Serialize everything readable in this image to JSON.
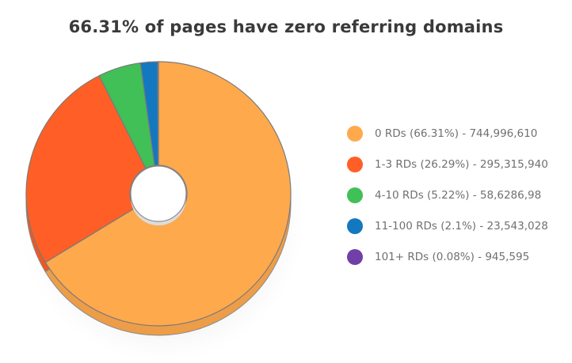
{
  "chart_data": {
    "type": "pie",
    "title": "66.31% of pages have zero referring domains",
    "legend_position": "right",
    "slices": [
      {
        "label": "0 RDs (66.31%) - 744,996,610",
        "value": 66.31,
        "color": "#FFA94D"
      },
      {
        "label": "1-3 RDs (26.29%) - 295,315,940",
        "value": 26.29,
        "color": "#FF5F26"
      },
      {
        "label": "4-10 RDs (5.22%) - 58,6286,98",
        "value": 5.22,
        "color": "#40C056"
      },
      {
        "label": "11-100 RDs (2.1%) - 23,543,028",
        "value": 2.1,
        "color": "#1478C0"
      },
      {
        "label": "101+ RDs (0.08%) - 945,595",
        "value": 0.08,
        "color": "#7040A8"
      }
    ]
  }
}
